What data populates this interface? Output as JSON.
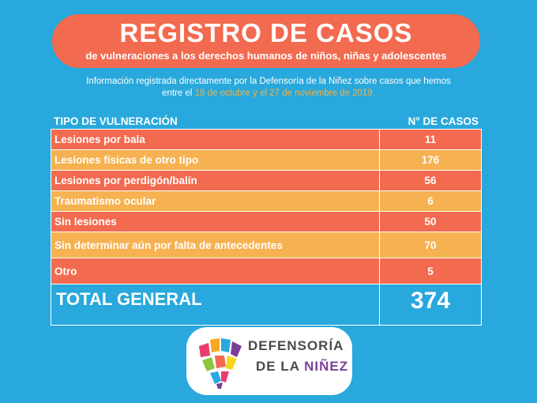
{
  "header": {
    "title": "REGISTRO DE CASOS",
    "subtitle": "de vulneraciones a los derechos humanos de niños, niñas y adolescentes"
  },
  "info": {
    "line1": "Información registrada directamente por la Defensoría de la Niñez sobre casos que hemos",
    "line2_prefix": "entre el ",
    "line2_dates": "18 de octubre y el 27 de noviembre de 2019."
  },
  "table": {
    "col_type": "TIPO DE VULNERACIÓN",
    "col_count": "N° DE CASOS",
    "rows": [
      {
        "type": "Lesiones por bala",
        "count": "11",
        "color": "#f26a4f"
      },
      {
        "type": "Lesiones físicas de otro tipo",
        "count": "176",
        "color": "#f6b250"
      },
      {
        "type": "Lesiones por perdigón/balín",
        "count": "56",
        "color": "#f26a4f"
      },
      {
        "type": "Traumatismo ocular",
        "count": "6",
        "color": "#f6b250"
      },
      {
        "type": "Sin lesiones",
        "count": "50",
        "color": "#f26a4f"
      },
      {
        "type": "Sin determinar aún por falta de antecedentes",
        "count": "70",
        "color": "#f6b250"
      },
      {
        "type": "Otro",
        "count": "5",
        "color": "#f26a4f"
      }
    ],
    "total_label": "TOTAL GENERAL",
    "total_value": "374"
  },
  "logo": {
    "line1": "DEFENSORÍA",
    "line2_prefix": "DE LA ",
    "line2_highlight": "NIÑEZ"
  },
  "colors": {
    "background": "#28a8dc",
    "accent_red": "#f26a4f",
    "accent_orange": "#f6b250",
    "brand_purple": "#7b3f98"
  }
}
